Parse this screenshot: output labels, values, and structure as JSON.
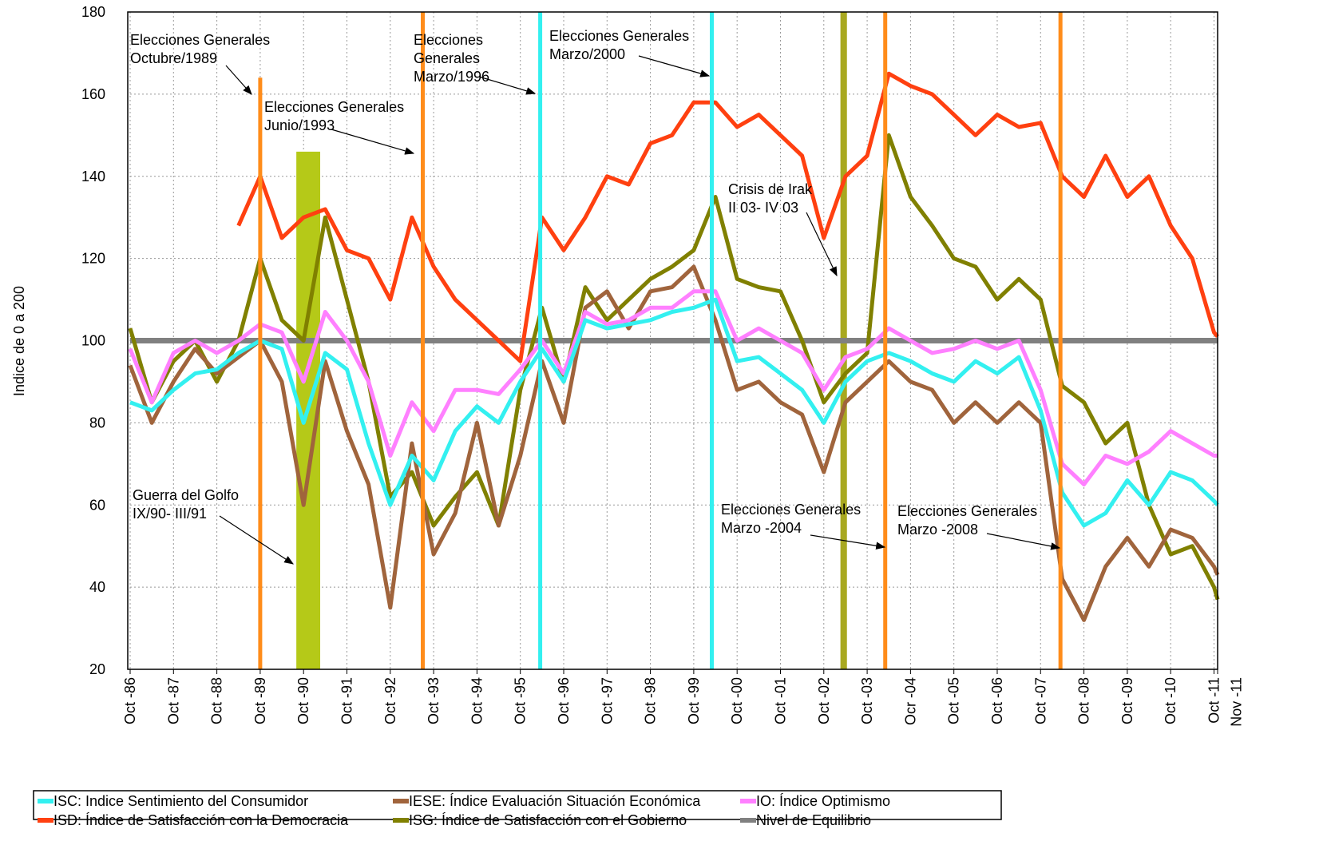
{
  "chart_data": {
    "type": "line",
    "ylabel": "Indice de 0 a 200",
    "xlim": [
      0,
      301
    ],
    "ylim": [
      20,
      180
    ],
    "yticks": [
      20,
      40,
      60,
      80,
      100,
      120,
      140,
      160,
      180
    ],
    "xticks": [
      {
        "value": 0,
        "label": "Oct -86"
      },
      {
        "value": 12,
        "label": "Oct -87"
      },
      {
        "value": 24,
        "label": "Oct -88"
      },
      {
        "value": 36,
        "label": "Oct -89"
      },
      {
        "value": 48,
        "label": "Oct -90"
      },
      {
        "value": 60,
        "label": "Oct -91"
      },
      {
        "value": 72,
        "label": "Oct -92"
      },
      {
        "value": 84,
        "label": "Oct -93"
      },
      {
        "value": 96,
        "label": "Oct -94"
      },
      {
        "value": 108,
        "label": "Oct -95"
      },
      {
        "value": 120,
        "label": "Oct -96"
      },
      {
        "value": 132,
        "label": "Oct -97"
      },
      {
        "value": 144,
        "label": "Oct -98"
      },
      {
        "value": 156,
        "label": "Oct -99"
      },
      {
        "value": 168,
        "label": "Oct -00"
      },
      {
        "value": 180,
        "label": "Oct -01"
      },
      {
        "value": 192,
        "label": "Oct -02"
      },
      {
        "value": 204,
        "label": "Oct -03"
      },
      {
        "value": 216,
        "label": "Ocr -04"
      },
      {
        "value": 228,
        "label": "Oct -05"
      },
      {
        "value": 240,
        "label": "Oct -06"
      },
      {
        "value": 252,
        "label": "Oct -07"
      },
      {
        "value": 264,
        "label": "Oct -08"
      },
      {
        "value": 276,
        "label": "Oct -09"
      },
      {
        "value": 288,
        "label": "Oct -10"
      },
      {
        "value": 300,
        "label": "Oct -11"
      },
      {
        "value": 301,
        "label": "Nov -11"
      }
    ],
    "grid": true,
    "x": [
      0,
      6,
      12,
      18,
      24,
      30,
      36,
      42,
      48,
      54,
      60,
      66,
      72,
      78,
      84,
      90,
      96,
      102,
      108,
      114,
      120,
      126,
      132,
      138,
      144,
      150,
      156,
      162,
      168,
      174,
      180,
      186,
      192,
      198,
      204,
      210,
      216,
      222,
      228,
      234,
      240,
      246,
      252,
      258,
      264,
      270,
      276,
      282,
      288,
      294,
      300,
      301
    ],
    "series": [
      {
        "name": "ISC: Indice Sentimiento del Consumidor",
        "color": "#33f0f0",
        "values": [
          85,
          83,
          88,
          92,
          93,
          97,
          100,
          98,
          80,
          97,
          93,
          75,
          60,
          72,
          66,
          78,
          84,
          80,
          90,
          98,
          90,
          105,
          103,
          104,
          105,
          107,
          108,
          110,
          95,
          96,
          92,
          88,
          80,
          90,
          95,
          97,
          95,
          92,
          90,
          95,
          92,
          96,
          83,
          63,
          55,
          58,
          66,
          60,
          68,
          66,
          61,
          60
        ]
      },
      {
        "name": "IESE: Índice Evaluación Situación Económica",
        "color": "#a0643c",
        "values": [
          94,
          80,
          90,
          98,
          92,
          96,
          100,
          90,
          60,
          95,
          78,
          65,
          35,
          75,
          48,
          58,
          80,
          55,
          72,
          95,
          80,
          108,
          112,
          103,
          112,
          113,
          118,
          105,
          88,
          90,
          85,
          82,
          68,
          85,
          90,
          95,
          90,
          88,
          80,
          85,
          80,
          85,
          80,
          42,
          32,
          45,
          52,
          45,
          54,
          52,
          45,
          43
        ]
      },
      {
        "name": "IO: Índice Optimismo",
        "color": "#ff80ff",
        "values": [
          98,
          85,
          97,
          100,
          97,
          100,
          104,
          102,
          90,
          107,
          100,
          90,
          72,
          85,
          78,
          88,
          88,
          87,
          93,
          100,
          92,
          107,
          104,
          105,
          108,
          108,
          112,
          112,
          100,
          103,
          100,
          97,
          88,
          96,
          98,
          103,
          100,
          97,
          98,
          100,
          98,
          100,
          88,
          70,
          65,
          72,
          70,
          73,
          78,
          75,
          72,
          72
        ]
      },
      {
        "name": "ISD: Índice de Satisfacción con la Democracia",
        "color": "#ff4010",
        "values": [
          null,
          null,
          null,
          null,
          null,
          128,
          140,
          125,
          130,
          132,
          122,
          120,
          110,
          130,
          118,
          110,
          105,
          100,
          95,
          130,
          122,
          130,
          140,
          138,
          148,
          150,
          158,
          158,
          152,
          155,
          150,
          145,
          125,
          140,
          145,
          165,
          162,
          160,
          155,
          150,
          155,
          152,
          153,
          140,
          135,
          145,
          135,
          140,
          128,
          120,
          102,
          101
        ]
      },
      {
        "name": "ISG: Índice de Satisfacción con el Gobierno",
        "color": "#808000",
        "values": [
          103,
          85,
          95,
          100,
          90,
          100,
          120,
          105,
          100,
          130,
          110,
          90,
          62,
          68,
          55,
          62,
          68,
          55,
          88,
          108,
          90,
          113,
          105,
          110,
          115,
          118,
          122,
          135,
          115,
          113,
          112,
          100,
          85,
          92,
          97,
          150,
          135,
          128,
          120,
          118,
          110,
          115,
          110,
          89,
          85,
          75,
          80,
          60,
          48,
          50,
          40,
          37
        ]
      }
    ],
    "reference_line": {
      "name": "Nivel de Equilibrio",
      "value": 100,
      "color": "#808080"
    },
    "events": [
      {
        "x": 36,
        "ymax": 164,
        "color": "#ff8c1a"
      },
      {
        "x": 81,
        "ymax": 180,
        "color": "#ff8c1a"
      },
      {
        "x": 113.5,
        "ymax": 180,
        "color": "#33f0f0"
      },
      {
        "x": 161,
        "ymax": 180,
        "color": "#33f0f0"
      },
      {
        "x": 209,
        "ymax": 180,
        "color": "#ff8c1a"
      },
      {
        "x": 257.5,
        "ymax": 180,
        "color": "#ff8c1a"
      }
    ],
    "periods": [
      {
        "x": [
          46,
          52.6
        ],
        "ymax": 146,
        "color": "#b5c918"
      },
      {
        "x": [
          196.6,
          198.4
        ],
        "ymax": 180,
        "color": "#a8a820"
      }
    ],
    "annotations": [
      {
        "text": [
          "Elecciones Generales",
          "Octubre/1989"
        ],
        "color": "#000000"
      },
      {
        "text": [
          "Elecciones Generales",
          "Junio/1993"
        ],
        "color": "#000000"
      },
      {
        "text": [
          "Elecciones",
          "Generales",
          "Marzo/1996"
        ],
        "color": "#000000"
      },
      {
        "text": [
          "Elecciones Generales",
          "Marzo/2000"
        ],
        "color": "#000000"
      },
      {
        "text": [
          "Crisis de Irak",
          "II 03- IV 03"
        ],
        "color": "#999900"
      },
      {
        "text": [
          "Guerra del Golfo",
          "IX/90- III/91"
        ],
        "color": "#000000"
      },
      {
        "text": [
          "Elecciones Generales",
          "Marzo -2004"
        ],
        "color": "#000000"
      },
      {
        "text": [
          "Elecciones Generales",
          "Marzo -2008"
        ],
        "color": "#000000"
      }
    ]
  }
}
